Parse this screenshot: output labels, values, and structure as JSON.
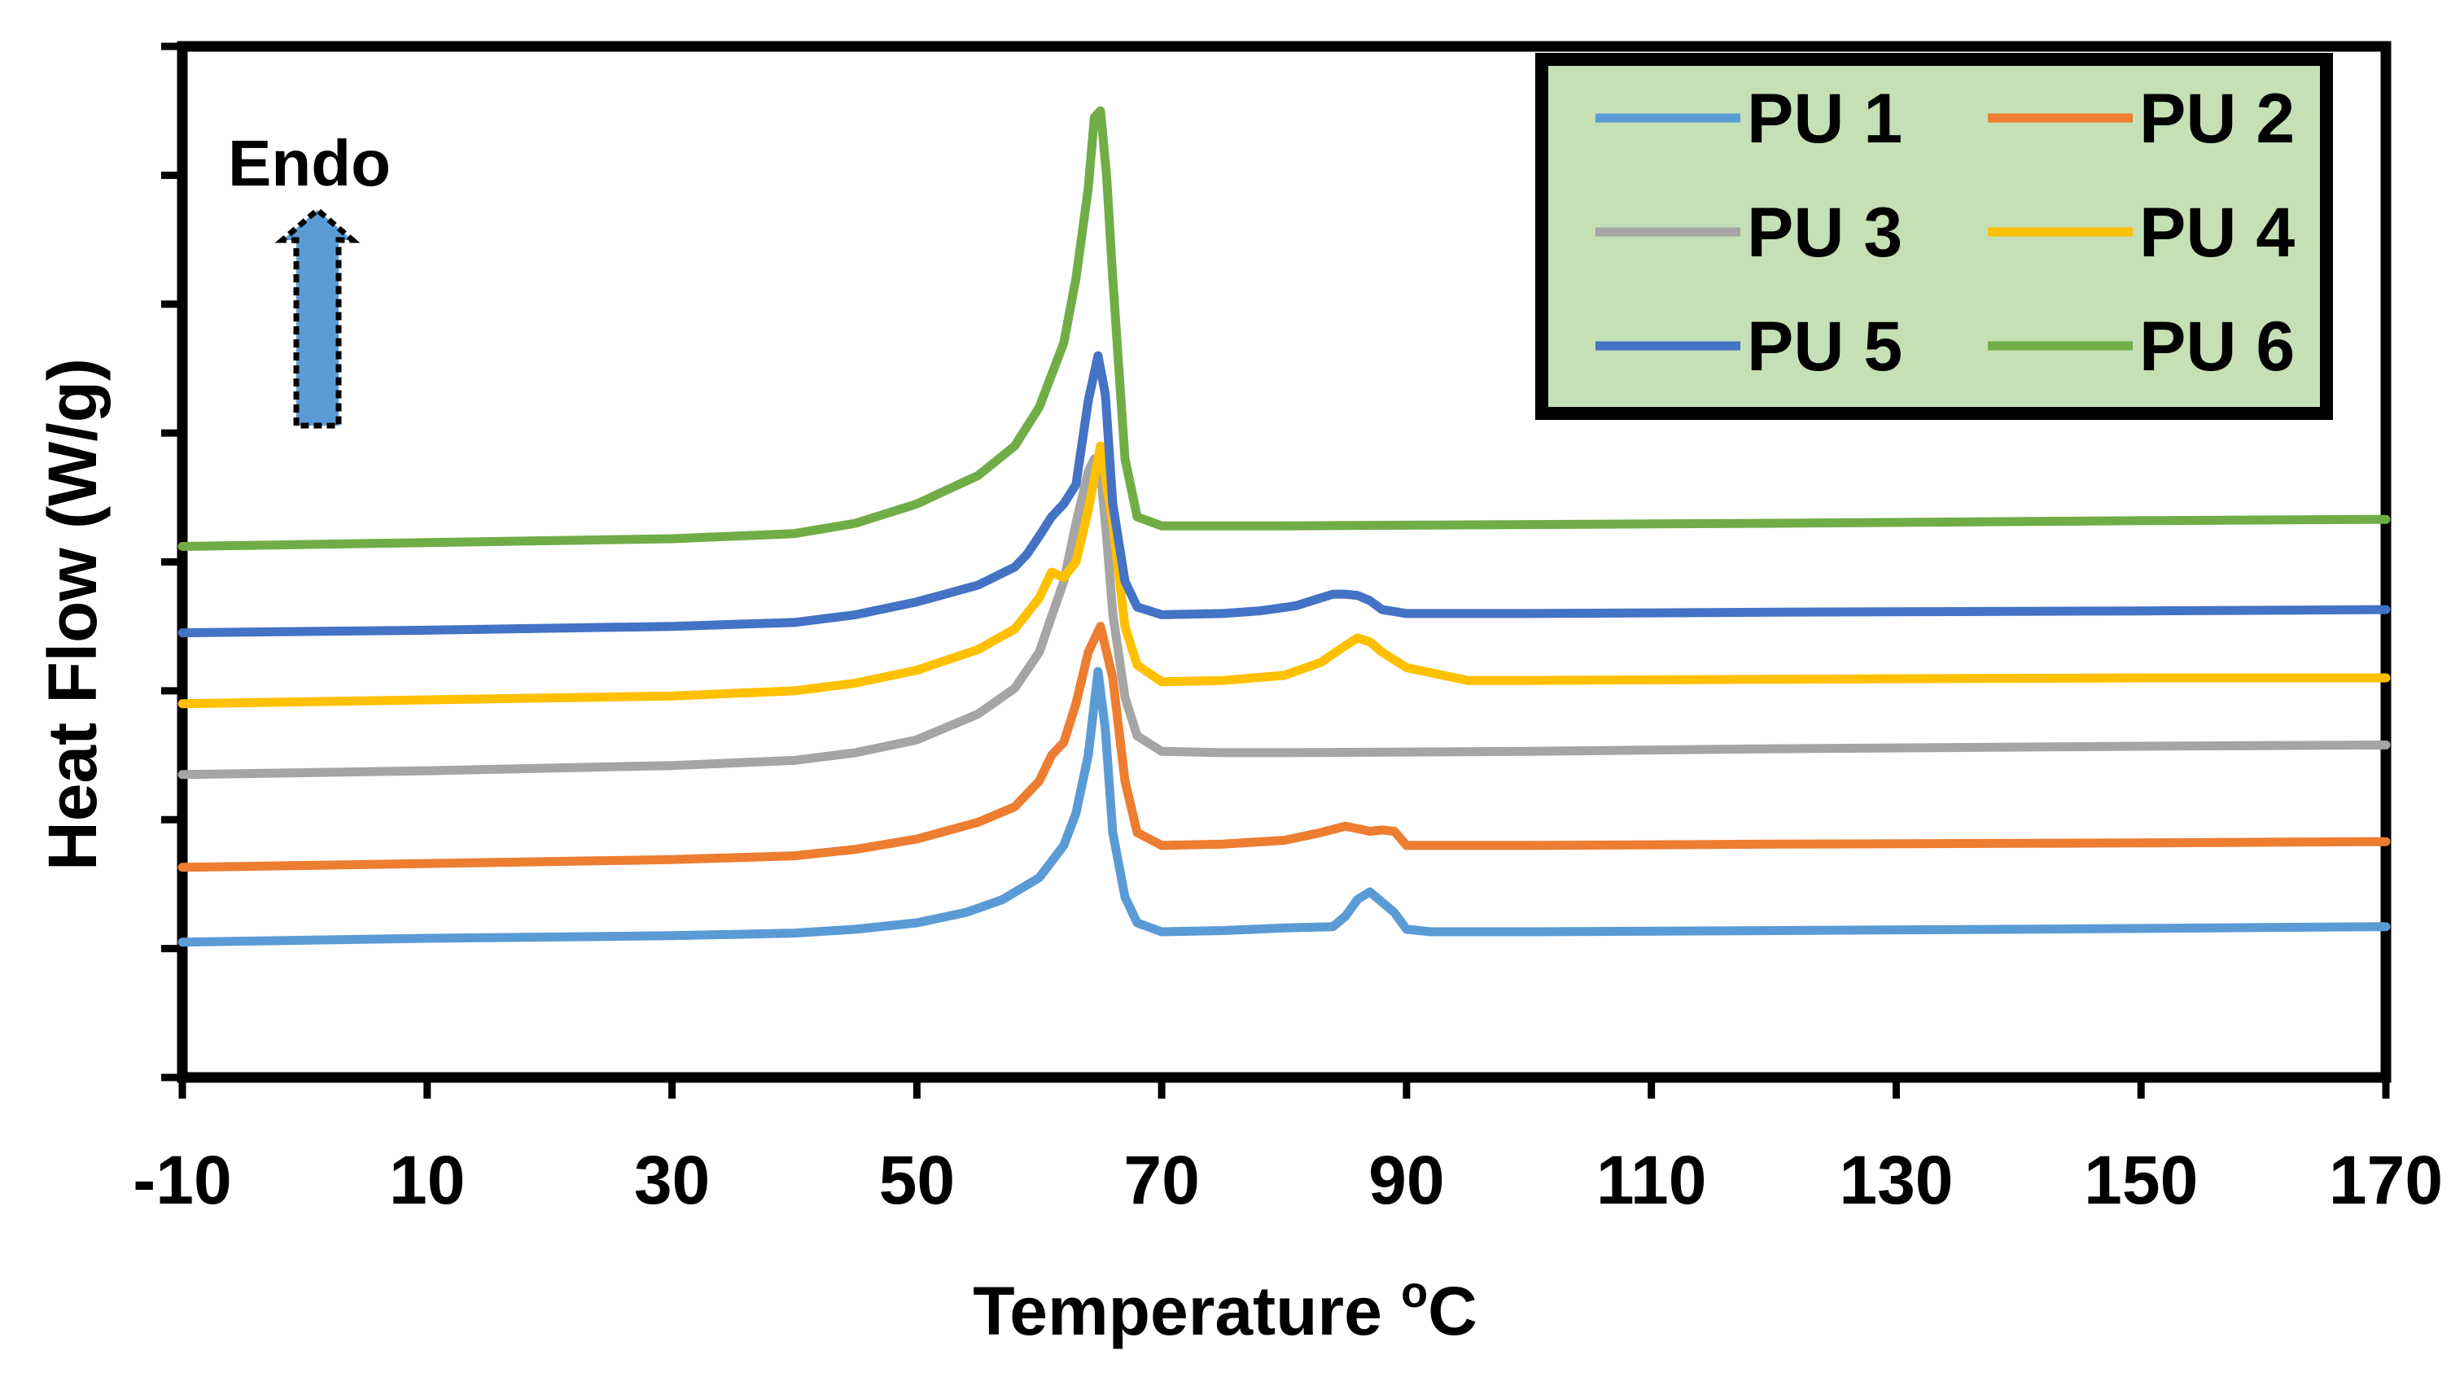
{
  "chart_data": {
    "type": "line",
    "xlabel": "Temperature",
    "xlabel_sup": "o",
    "xlabel_unit": "C",
    "ylabel": "Heat Flow (W/g)",
    "xlim": [
      -10,
      170
    ],
    "ylim": [
      0,
      8
    ],
    "xticks": [
      "-10",
      "10",
      "30",
      "50",
      "70",
      "90",
      "110",
      "130",
      "150",
      "170"
    ],
    "y_tick_labels_shown": false,
    "legend_position": "top-right",
    "annotation": "Endo",
    "annotation_arrow": "up",
    "annotation_arrow_color": "#5B9BD5",
    "legend_background": "#C5E0B4",
    "series": [
      {
        "name": "PU 1",
        "color": "#5B9BD5",
        "x": [
          -10,
          10,
          30,
          40,
          45,
          50,
          54,
          57,
          60,
          62,
          63,
          64,
          64.8,
          65.4,
          66,
          67,
          68,
          70,
          75,
          80,
          84,
          85,
          86,
          87,
          88,
          89,
          90,
          92,
          100,
          120,
          140,
          170
        ],
        "y": [
          1.05,
          1.08,
          1.1,
          1.12,
          1.15,
          1.2,
          1.28,
          1.38,
          1.55,
          1.8,
          2.05,
          2.5,
          3.15,
          2.7,
          1.9,
          1.4,
          1.2,
          1.13,
          1.14,
          1.16,
          1.17,
          1.25,
          1.38,
          1.44,
          1.36,
          1.28,
          1.15,
          1.13,
          1.13,
          1.14,
          1.15,
          1.17
        ]
      },
      {
        "name": "PU 2",
        "color": "#ED7D31",
        "x": [
          -10,
          10,
          30,
          40,
          45,
          50,
          55,
          58,
          60,
          61,
          62,
          63,
          64,
          65,
          66,
          67,
          68,
          70,
          75,
          80,
          83,
          85,
          86,
          87,
          88,
          89,
          90,
          100,
          120,
          150,
          170
        ],
        "y": [
          1.63,
          1.66,
          1.69,
          1.72,
          1.77,
          1.85,
          1.98,
          2.1,
          2.3,
          2.5,
          2.6,
          2.9,
          3.3,
          3.5,
          3.1,
          2.3,
          1.9,
          1.8,
          1.81,
          1.84,
          1.9,
          1.95,
          1.93,
          1.91,
          1.92,
          1.91,
          1.8,
          1.8,
          1.81,
          1.82,
          1.83
        ]
      },
      {
        "name": "PU 3",
        "color": "#A5A5A5",
        "x": [
          -10,
          10,
          30,
          40,
          45,
          50,
          55,
          58,
          60,
          62,
          63,
          64,
          64.5,
          65,
          65.5,
          66,
          67,
          68,
          70,
          75,
          80,
          100,
          120,
          150,
          170
        ],
        "y": [
          2.35,
          2.38,
          2.42,
          2.46,
          2.52,
          2.62,
          2.82,
          3.02,
          3.3,
          3.85,
          4.3,
          4.7,
          4.8,
          4.7,
          4.2,
          3.6,
          2.95,
          2.65,
          2.53,
          2.52,
          2.52,
          2.53,
          2.55,
          2.57,
          2.58
        ]
      },
      {
        "name": "PU 4",
        "color": "#FFC000",
        "x": [
          -10,
          10,
          30,
          40,
          45,
          50,
          55,
          58,
          60,
          61,
          62,
          63,
          64,
          65,
          66,
          67,
          68,
          70,
          75,
          80,
          83,
          85,
          86,
          87,
          88,
          90,
          95,
          100,
          120,
          150,
          170
        ],
        "y": [
          2.9,
          2.93,
          2.96,
          3.0,
          3.06,
          3.16,
          3.32,
          3.48,
          3.72,
          3.92,
          3.88,
          4.0,
          4.4,
          4.9,
          4.3,
          3.5,
          3.2,
          3.07,
          3.08,
          3.12,
          3.22,
          3.35,
          3.41,
          3.38,
          3.3,
          3.18,
          3.08,
          3.08,
          3.09,
          3.1,
          3.1
        ]
      },
      {
        "name": "PU 5",
        "color": "#4472C4",
        "x": [
          -10,
          10,
          30,
          40,
          45,
          50,
          55,
          58,
          59,
          60,
          61,
          62,
          63,
          64,
          64.8,
          65.4,
          66,
          67,
          68,
          70,
          75,
          78,
          81,
          83,
          84,
          85,
          86,
          87,
          88,
          90,
          100,
          120,
          150,
          170
        ],
        "y": [
          3.45,
          3.47,
          3.5,
          3.53,
          3.59,
          3.69,
          3.82,
          3.96,
          4.06,
          4.2,
          4.35,
          4.45,
          4.6,
          5.25,
          5.6,
          5.3,
          4.45,
          3.85,
          3.65,
          3.59,
          3.6,
          3.62,
          3.66,
          3.72,
          3.75,
          3.75,
          3.74,
          3.7,
          3.63,
          3.6,
          3.6,
          3.61,
          3.62,
          3.63
        ]
      },
      {
        "name": "PU 6",
        "color": "#70AD47",
        "x": [
          -10,
          10,
          30,
          40,
          45,
          50,
          55,
          58,
          60,
          62,
          63,
          64,
          64.5,
          65,
          65.5,
          66,
          67,
          68,
          70,
          80,
          100,
          120,
          150,
          170
        ],
        "y": [
          4.12,
          4.15,
          4.18,
          4.22,
          4.3,
          4.45,
          4.67,
          4.9,
          5.2,
          5.7,
          6.2,
          6.9,
          7.45,
          7.5,
          7.0,
          6.2,
          4.8,
          4.35,
          4.28,
          4.28,
          4.29,
          4.3,
          4.32,
          4.33
        ]
      }
    ]
  }
}
